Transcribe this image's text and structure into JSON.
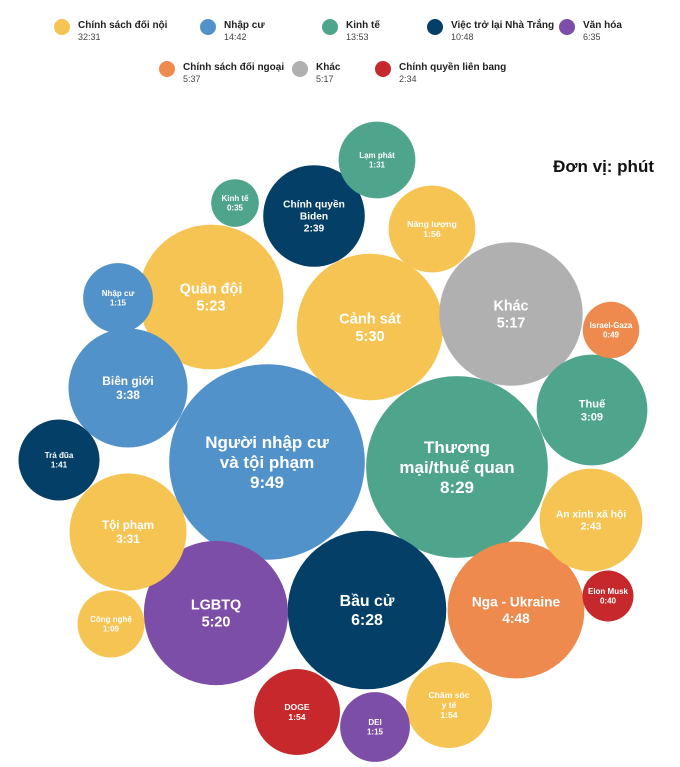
{
  "unit_label": "Đơn vị: phút",
  "colors": {
    "domestic": "#F6C453",
    "immigration": "#5292CB",
    "economy": "#4FA48C",
    "return": "#033F67",
    "culture": "#7D4EA7",
    "foreign": "#EF8A4E",
    "other": "#B0B0B0",
    "federal": "#C6282B"
  },
  "legend": [
    {
      "key": "domestic",
      "name": "Chính sách đối nội",
      "value": "32:31"
    },
    {
      "key": "immigration",
      "name": "Nhập cư",
      "value": "14:42"
    },
    {
      "key": "economy",
      "name": "Kinh tế",
      "value": "13:53"
    },
    {
      "key": "return",
      "name": "Việc trở lại Nhà Trắng",
      "value": "10:48"
    },
    {
      "key": "culture",
      "name": "Văn hóa",
      "value": "6:35"
    },
    {
      "key": "foreign",
      "name": "Chính sách đối ngoại",
      "value": "5:37"
    },
    {
      "key": "other",
      "name": "Khác",
      "value": "5:17"
    },
    {
      "key": "federal",
      "name": "Chính quyền liên bang",
      "value": "2:34"
    }
  ],
  "chart_data": {
    "type": "bubble",
    "unit": "Đơn vị: phút",
    "bubbles": [
      {
        "lines": [
          "Người nhập cư",
          "và tội phạm"
        ],
        "value": "9:49",
        "minutes": 9.817,
        "category": "immigration"
      },
      {
        "lines": [
          "Thương",
          "mại/thuế quan"
        ],
        "value": "8:29",
        "minutes": 8.483,
        "category": "economy"
      },
      {
        "lines": [
          "Bầu cử"
        ],
        "value": "6:28",
        "minutes": 6.467,
        "category": "return"
      },
      {
        "lines": [
          "Cảnh sát"
        ],
        "value": "5:30",
        "minutes": 5.5,
        "category": "domestic"
      },
      {
        "lines": [
          "Quân đội"
        ],
        "value": "5:23",
        "minutes": 5.383,
        "category": "domestic"
      },
      {
        "lines": [
          "LGBTQ"
        ],
        "value": "5:20",
        "minutes": 5.333,
        "category": "culture"
      },
      {
        "lines": [
          "Khác"
        ],
        "value": "5:17",
        "minutes": 5.283,
        "category": "other"
      },
      {
        "lines": [
          "Nga - Ukraine"
        ],
        "value": "4:48",
        "minutes": 4.8,
        "category": "foreign"
      },
      {
        "lines": [
          "Biên giới"
        ],
        "value": "3:38",
        "minutes": 3.633,
        "category": "immigration"
      },
      {
        "lines": [
          "Tội phạm"
        ],
        "value": "3:31",
        "minutes": 3.517,
        "category": "domestic"
      },
      {
        "lines": [
          "Thuế"
        ],
        "value": "3:09",
        "minutes": 3.15,
        "category": "economy"
      },
      {
        "lines": [
          "An xinh xã hội"
        ],
        "value": "2:43",
        "minutes": 2.717,
        "category": "domestic"
      },
      {
        "lines": [
          "Chính quyền",
          "Biden"
        ],
        "value": "2:39",
        "minutes": 2.65,
        "category": "return"
      },
      {
        "lines": [
          "Năng lượng"
        ],
        "value": "1:56",
        "minutes": 1.933,
        "category": "domestic"
      },
      {
        "lines": [
          "DOGE"
        ],
        "value": "1:54",
        "minutes": 1.9,
        "category": "federal"
      },
      {
        "lines": [
          "Chăm sóc",
          "y tế"
        ],
        "value": "1:54",
        "minutes": 1.9,
        "category": "domestic"
      },
      {
        "lines": [
          "Trả đũa"
        ],
        "value": "1:41",
        "minutes": 1.683,
        "category": "return"
      },
      {
        "lines": [
          "Lạm phát"
        ],
        "value": "1:31",
        "minutes": 1.517,
        "category": "economy"
      },
      {
        "lines": [
          "Nhập cư"
        ],
        "value": "1:15",
        "minutes": 1.25,
        "category": "immigration"
      },
      {
        "lines": [
          "DEI"
        ],
        "value": "1:15",
        "minutes": 1.25,
        "category": "culture"
      },
      {
        "lines": [
          "Công nghệ"
        ],
        "value": "1:09",
        "minutes": 1.15,
        "category": "domestic"
      },
      {
        "lines": [
          "Israel-Gaza"
        ],
        "value": "0:49",
        "minutes": 0.817,
        "category": "foreign"
      },
      {
        "lines": [
          "Elon Musk"
        ],
        "value": "0:40",
        "minutes": 0.667,
        "category": "federal"
      },
      {
        "lines": [
          "Kinh tế"
        ],
        "value": "0:35",
        "minutes": 0.583,
        "category": "economy"
      }
    ]
  }
}
